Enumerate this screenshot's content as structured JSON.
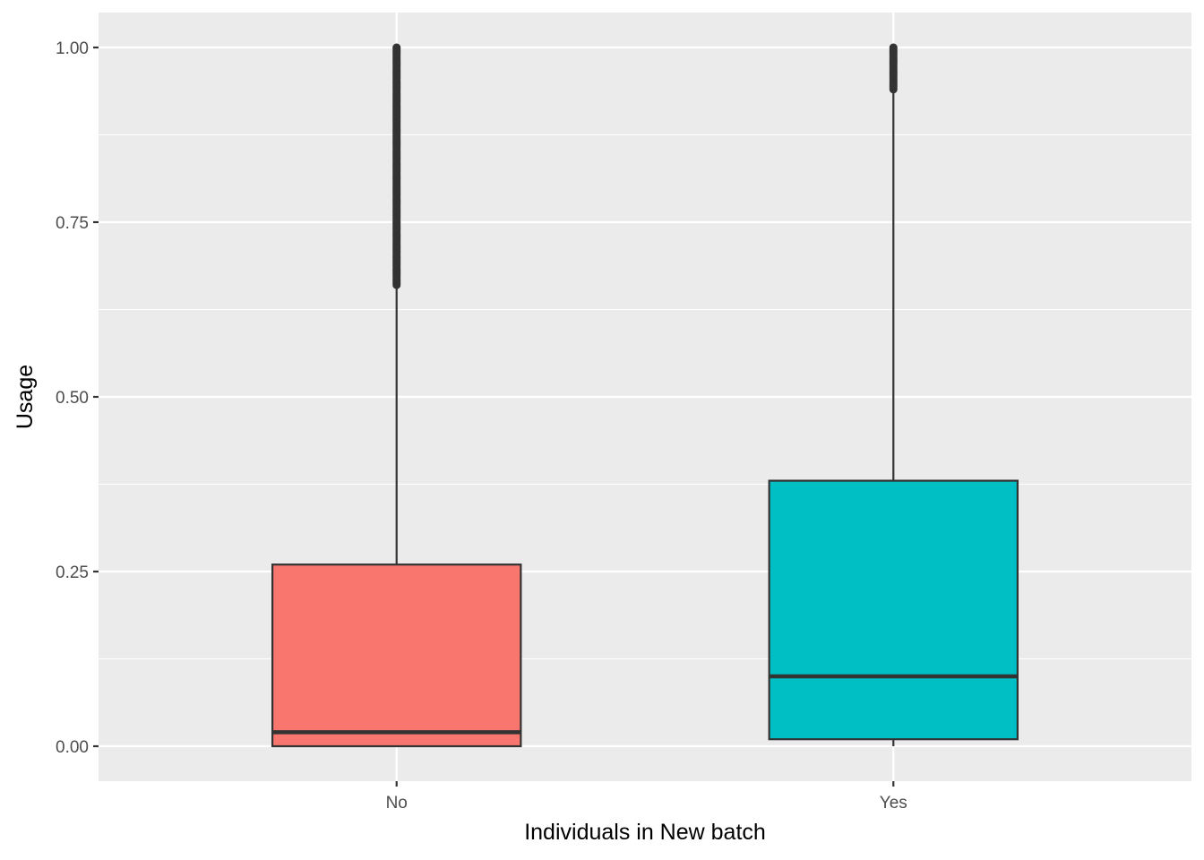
{
  "chart_data": {
    "type": "boxplot",
    "xlabel": "Individuals in New batch",
    "ylabel": "Usage",
    "categories": [
      "No",
      "Yes"
    ],
    "ylim": [
      -0.05,
      1.05
    ],
    "yticks": [
      0.0,
      0.25,
      0.5,
      0.75,
      1.0
    ],
    "ytick_labels": [
      "0.00",
      "0.25",
      "0.50",
      "0.75",
      "1.00"
    ],
    "grid": true,
    "legend": "none",
    "boxes": [
      {
        "category": "No",
        "color": "#F8766D",
        "min": 0.0,
        "q1": 0.0,
        "median": 0.02,
        "q3": 0.26,
        "whisker_high": 0.66,
        "outliers_range": [
          0.66,
          1.0
        ]
      },
      {
        "category": "Yes",
        "color": "#00BFC4",
        "min": 0.0,
        "q1": 0.01,
        "median": 0.1,
        "q3": 0.38,
        "whisker_high": 0.94,
        "outliers_range": [
          0.94,
          1.0
        ]
      }
    ],
    "colors": {
      "panel_bg": "#EBEBEB",
      "grid": "#FFFFFF",
      "box_line": "#333333",
      "outlier": "#333333"
    }
  }
}
